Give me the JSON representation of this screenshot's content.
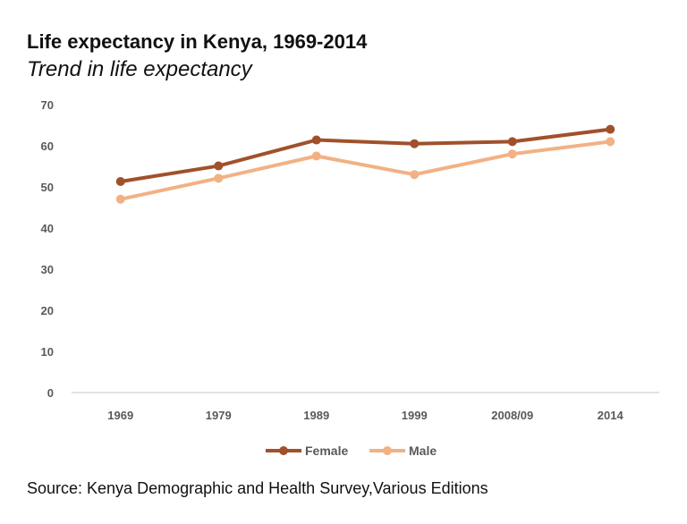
{
  "header": {
    "title": "Life expectancy in Kenya, 1969-2014",
    "subtitle": "Trend in life expectancy"
  },
  "footer": {
    "source": "Source: Kenya Demographic and Health Survey,Various Editions"
  },
  "chart_data": {
    "type": "line",
    "title": "Life expectancy in Kenya, 1969-2014",
    "subtitle": "Trend in life expectancy",
    "categories": [
      "1969",
      "1979",
      "1989",
      "1999",
      "2008/09",
      "2014"
    ],
    "series": [
      {
        "name": "Female",
        "color": "#a0512b",
        "values": [
          51.3,
          55.1,
          61.4,
          60.5,
          61.0,
          64.0
        ]
      },
      {
        "name": "Male",
        "color": "#f2b184",
        "values": [
          47.0,
          52.1,
          57.5,
          53.0,
          58.0,
          61.0
        ]
      }
    ],
    "xlabel": "",
    "ylabel": "",
    "ylim": [
      0,
      70
    ],
    "yticks": [
      0,
      10,
      20,
      30,
      40,
      50,
      60,
      70
    ],
    "grid": false,
    "legend": "bottom"
  }
}
